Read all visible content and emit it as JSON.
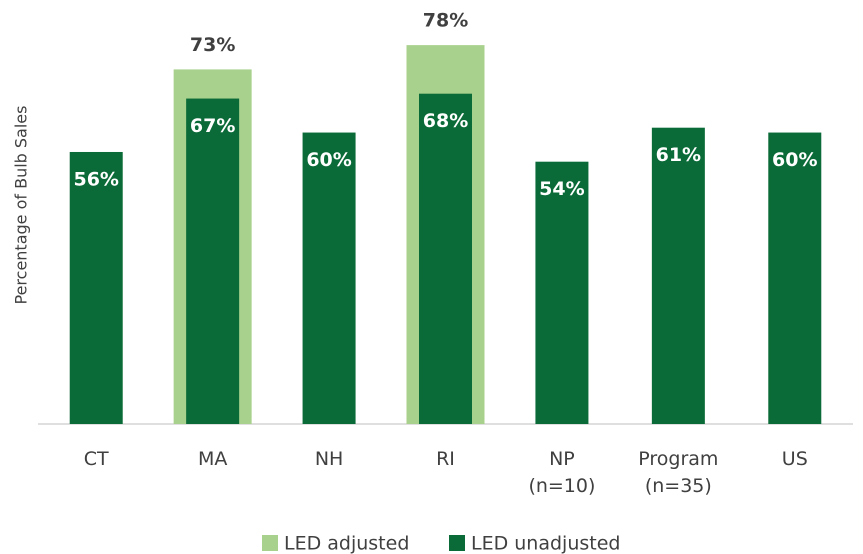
{
  "chart_data": {
    "type": "bar",
    "y_label": "Percentage of Bulb Sales",
    "categories": [
      "CT",
      "MA",
      "NH",
      "RI",
      "NP (n=10)",
      "Program (n=35)",
      "US"
    ],
    "series": [
      {
        "name": "LED adjusted",
        "color": "#a9d18e",
        "values": [
          null,
          73,
          null,
          78,
          null,
          null,
          null
        ],
        "value_labels": [
          null,
          "73%",
          null,
          "78%",
          null,
          null,
          null
        ]
      },
      {
        "name": "LED unadjusted",
        "color": "#0b6b38",
        "values": [
          56,
          67,
          60,
          68,
          54,
          61,
          60
        ],
        "value_labels": [
          "56%",
          "67%",
          "60%",
          "68%",
          "54%",
          "61%",
          "60%"
        ]
      }
    ],
    "ylim": [
      0,
      87
    ],
    "legend": "bottom"
  }
}
